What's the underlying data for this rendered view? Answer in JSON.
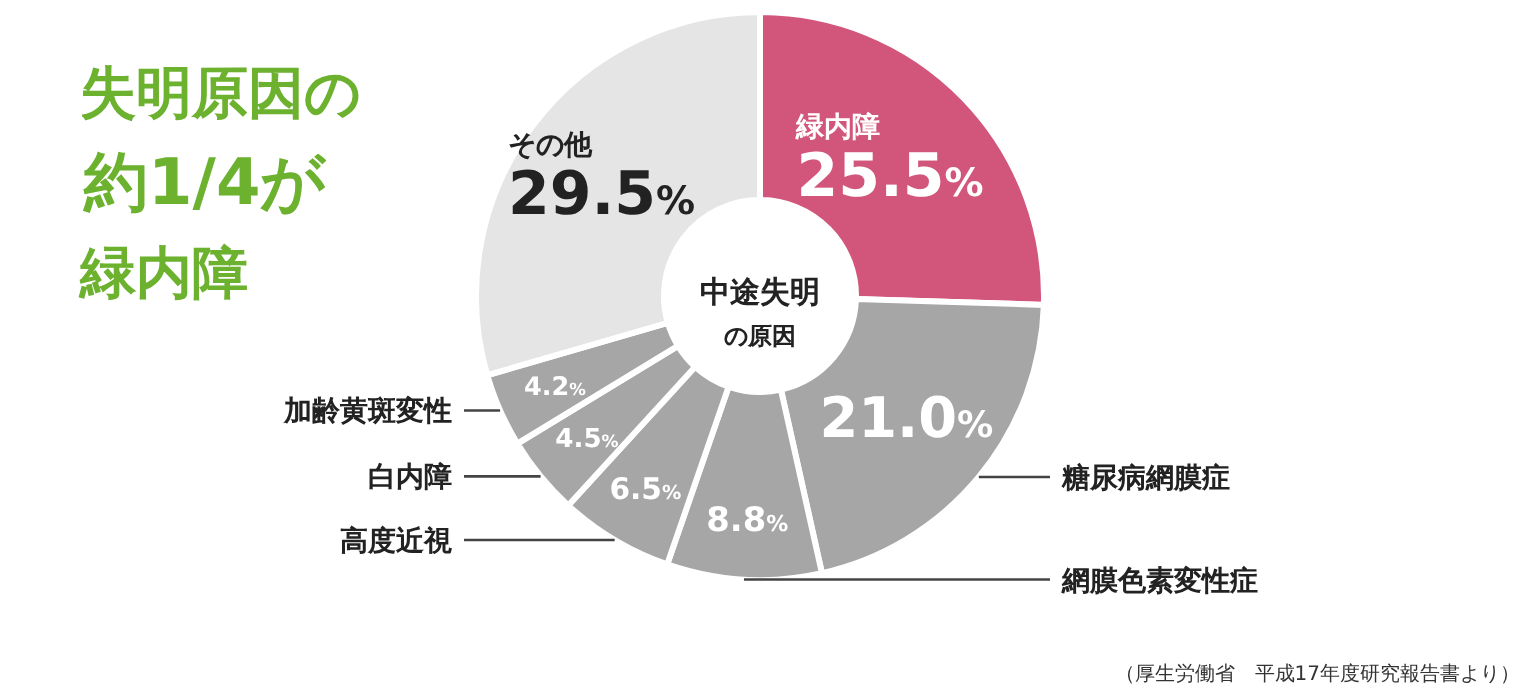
{
  "chart_data": {
    "type": "donut",
    "title": "失明原因の約1/4が緑内障",
    "categories": [
      "緑内障",
      "糖尿病網膜症",
      "網膜色素変性症",
      "高度近視",
      "白内障",
      "加齢黄斑変性",
      "その他"
    ],
    "values": [
      25.5,
      21.0,
      8.8,
      6.5,
      4.5,
      4.2,
      29.5
    ],
    "value_labels": [
      "25.5%",
      "21.0%",
      "8.8%",
      "6.5%",
      "4.5%",
      "4.2%",
      "29.5%"
    ],
    "colors": [
      "#d2557c",
      "#a6a6a6",
      "#a6a6a6",
      "#a6a6a6",
      "#a6a6a6",
      "#a6a6a6",
      "#e5e5e5"
    ],
    "annotations": [
      "中途失明の原因",
      "（厚生労働省　平成17年度研究報告書より）"
    ]
  }
}
